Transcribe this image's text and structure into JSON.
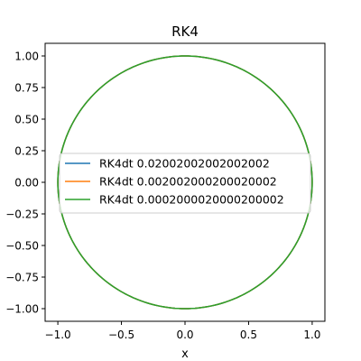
{
  "chart_data": {
    "type": "line",
    "title": "RK4",
    "xlabel": "x",
    "ylabel": "",
    "xlim": [
      -1.1,
      1.1
    ],
    "ylim": [
      -1.1,
      1.1
    ],
    "xticks": [
      -1.0,
      -0.5,
      0.0,
      0.5,
      1.0
    ],
    "xtick_labels": [
      "−1.0",
      "−0.5",
      "0.0",
      "0.5",
      "1.0"
    ],
    "yticks": [
      1.0,
      0.75,
      0.5,
      0.25,
      0.0,
      -0.25,
      -0.5,
      -0.75,
      -1.0
    ],
    "ytick_labels": [
      "1.00",
      "0.75",
      "0.50",
      "0.25",
      "0.00",
      "−0.25",
      "−0.50",
      "−0.75",
      "−1.00"
    ],
    "grid": false,
    "legend_position": "center",
    "series": [
      {
        "name": "RK4dt 0.02002002002002002",
        "color": "#1f77b4",
        "x": [
          1.0,
          0.866,
          0.5,
          0.0,
          -0.5,
          -0.866,
          -1.0,
          -0.866,
          -0.5,
          0.0,
          0.5,
          0.866,
          1.0
        ],
        "y": [
          0.0,
          0.5,
          0.866,
          1.0,
          0.866,
          0.5,
          0.0,
          -0.5,
          -0.866,
          -1.0,
          -0.866,
          -0.5,
          0.0
        ]
      },
      {
        "name": "RK4dt 0.002002000200020002",
        "color": "#ff7f0e",
        "x": [
          1.0,
          0.866,
          0.5,
          0.0,
          -0.5,
          -0.866,
          -1.0,
          -0.866,
          -0.5,
          0.0,
          0.5,
          0.866,
          1.0
        ],
        "y": [
          0.0,
          0.5,
          0.866,
          1.0,
          0.866,
          0.5,
          0.0,
          -0.5,
          -0.866,
          -1.0,
          -0.866,
          -0.5,
          0.0
        ]
      },
      {
        "name": "RK4dt 0.0002000020000200002",
        "color": "#2ca02c",
        "x": [
          1.0,
          0.866,
          0.5,
          0.0,
          -0.5,
          -0.866,
          -1.0,
          -0.866,
          -0.5,
          0.0,
          0.5,
          0.866,
          1.0
        ],
        "y": [
          0.0,
          0.5,
          0.866,
          1.0,
          0.866,
          0.5,
          0.0,
          -0.5,
          -0.866,
          -1.0,
          -0.866,
          -0.5,
          0.0
        ]
      }
    ]
  }
}
